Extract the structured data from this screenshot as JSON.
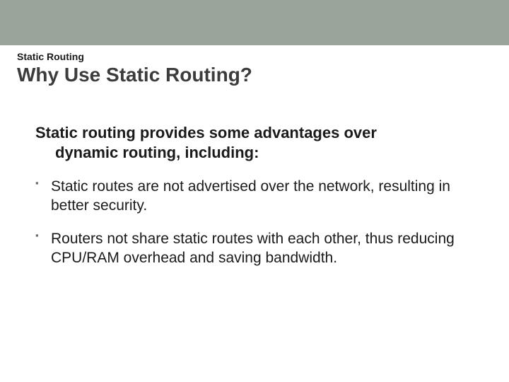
{
  "colors": {
    "topbar_bg": "#9aa49a",
    "kicker_text": "#1a1a1a",
    "title_text": "#3c3c3c",
    "body_text": "#1a1a1a",
    "bullet_color": "#6b6b6b",
    "background": "#ffffff"
  },
  "layout": {
    "slide_w": 720,
    "slide_h": 540,
    "topbar_h": 64
  },
  "typography": {
    "kicker_size": 14,
    "title_size": 28,
    "lead_size": 22,
    "bullet_size": 21,
    "bullet_marker_size": 13
  },
  "kicker": "Static Routing",
  "title": "Why Use Static Routing?",
  "lead_line1": "Static routing provides some advantages over",
  "lead_line2": "dynamic routing, including:",
  "bullets": [
    "Static routes are not advertised over the network, resulting in better security.",
    "Routers not share static routes with each other, thus reducing CPU/RAM overhead and saving bandwidth."
  ]
}
